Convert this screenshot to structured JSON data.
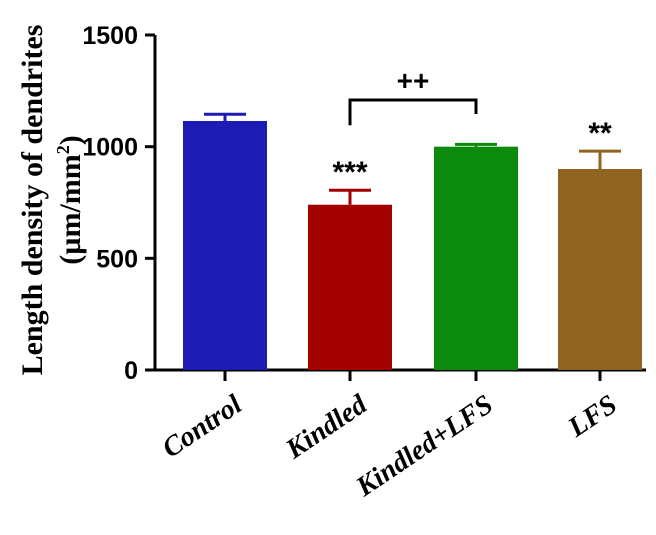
{
  "chart_data": {
    "type": "bar",
    "title": "",
    "ylabel_line1": "Length density of dendrites",
    "ylabel_line2_prefix": "(µm/mm",
    "ylabel_line2_sup": "2",
    "ylabel_line2_suffix": ")",
    "xlabel": "",
    "ylim": [
      0,
      1500
    ],
    "yticks": [
      0,
      500,
      1000,
      1500
    ],
    "ytick_labels": [
      "0",
      "500",
      "1000",
      "1500"
    ],
    "grid": false,
    "categories": [
      "Control",
      "Kindled",
      "Kindled+LFS",
      "LFS"
    ],
    "values": [
      1115,
      740,
      1000,
      900
    ],
    "errors": [
      30,
      65,
      10,
      80
    ],
    "colors": [
      "#1c1cb4",
      "#a30000",
      "#0b8a0b",
      "#8f6420"
    ],
    "significance": [
      {
        "category_index": 1,
        "label": "***"
      },
      {
        "category_index": 3,
        "label": "**"
      }
    ],
    "bracket": {
      "from_index": 1,
      "to_index": 2,
      "label": "++"
    }
  }
}
